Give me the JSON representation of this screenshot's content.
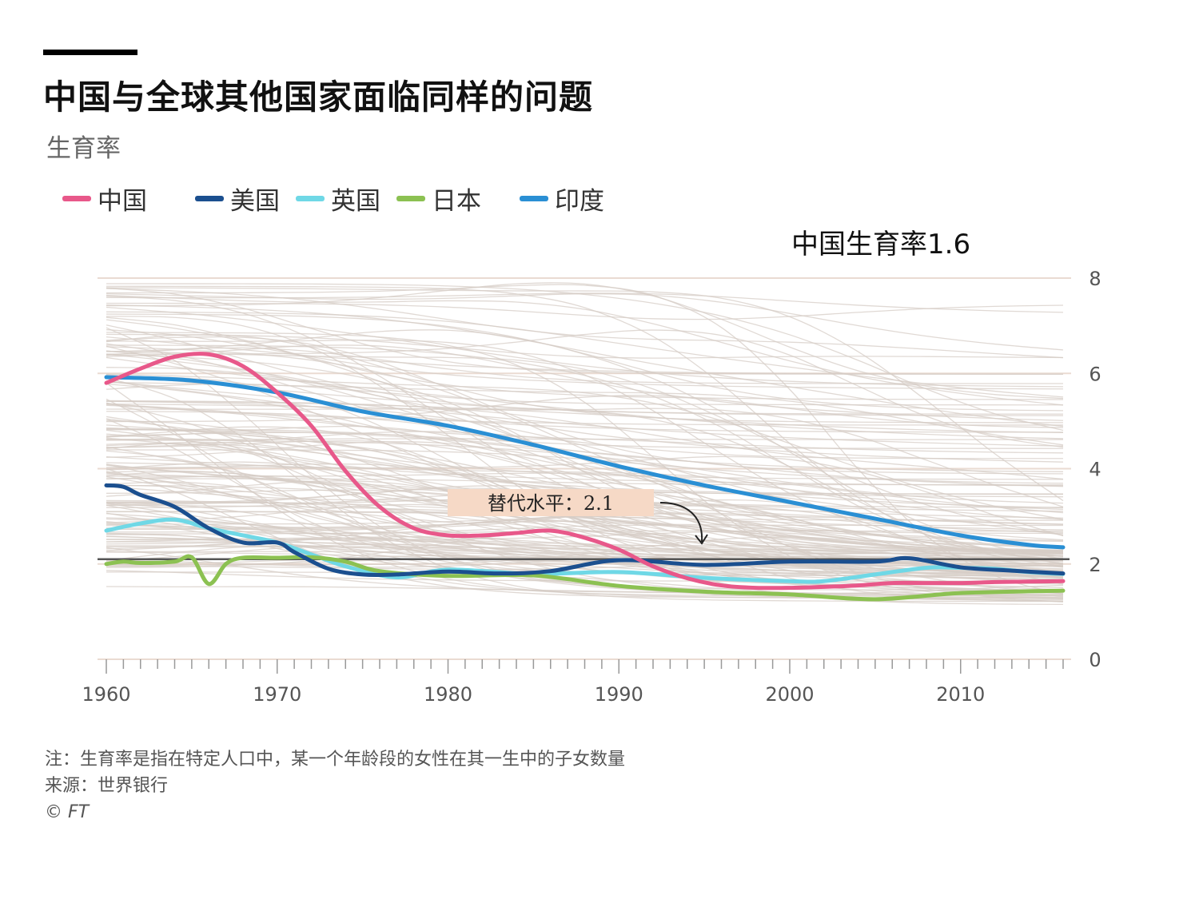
{
  "title": "中国与全球其他国家面临同样的问题",
  "subtitle": "生育率",
  "top_annotation": "中国生育率1.6",
  "legend": [
    {
      "label": "中国",
      "color": "#e8588a"
    },
    {
      "label": "美国",
      "color": "#1b4f8f"
    },
    {
      "label": "英国",
      "color": "#6fd8e6"
    },
    {
      "label": "日本",
      "color": "#8cc152"
    },
    {
      "label": "印度",
      "color": "#2a8fd4"
    }
  ],
  "replacement_label": "替代水平：2.1",
  "notes": {
    "note": "注：生育率是指在特定人口中，某一个年龄段的女性在其一生中的子女数量",
    "source": "来源：世界银行",
    "credit": "© FT"
  },
  "chart_data": {
    "type": "line",
    "ylim": [
      0,
      8
    ],
    "xlim": [
      1960,
      2016
    ],
    "yticks": [
      "0",
      "2",
      "4",
      "6",
      "8"
    ],
    "xticks": [
      "1960",
      "1970",
      "1980",
      "1990",
      "2000",
      "2010"
    ],
    "replacement_level": 2.1,
    "series": [
      {
        "name": "中国",
        "color": "#e8588a",
        "x": [
          1960,
          1962,
          1964,
          1966,
          1968,
          1970,
          1972,
          1974,
          1976,
          1978,
          1980,
          1982,
          1984,
          1986,
          1988,
          1990,
          1992,
          1994,
          1996,
          1998,
          2000,
          2002,
          2004,
          2006,
          2008,
          2010,
          2012,
          2014,
          2016
        ],
        "y": [
          5.8,
          6.1,
          6.35,
          6.4,
          6.15,
          5.6,
          4.9,
          3.95,
          3.2,
          2.75,
          2.6,
          2.6,
          2.65,
          2.7,
          2.55,
          2.3,
          1.95,
          1.7,
          1.55,
          1.5,
          1.5,
          1.52,
          1.55,
          1.6,
          1.6,
          1.6,
          1.62,
          1.63,
          1.64
        ]
      },
      {
        "name": "美国",
        "color": "#1b4f8f",
        "x": [
          1960,
          1961,
          1962,
          1964,
          1966,
          1968,
          1970,
          1971,
          1973,
          1975,
          1977,
          1980,
          1983,
          1986,
          1990,
          1995,
          2000,
          2005,
          2007,
          2010,
          2013,
          2016
        ],
        "y": [
          3.65,
          3.62,
          3.45,
          3.2,
          2.75,
          2.45,
          2.45,
          2.25,
          1.9,
          1.78,
          1.78,
          1.84,
          1.8,
          1.85,
          2.08,
          1.98,
          2.05,
          2.05,
          2.12,
          1.93,
          1.86,
          1.8
        ]
      },
      {
        "name": "英国",
        "color": "#6fd8e6",
        "x": [
          1960,
          1962,
          1964,
          1966,
          1968,
          1970,
          1972,
          1974,
          1977,
          1980,
          1985,
          1990,
          1995,
          2000,
          2002,
          2005,
          2008,
          2010,
          2012,
          2014,
          2016
        ],
        "y": [
          2.7,
          2.85,
          2.93,
          2.75,
          2.6,
          2.45,
          2.2,
          1.95,
          1.72,
          1.88,
          1.79,
          1.83,
          1.71,
          1.64,
          1.64,
          1.78,
          1.92,
          1.92,
          1.9,
          1.83,
          1.79
        ]
      },
      {
        "name": "日本",
        "color": "#8cc152",
        "x": [
          1960,
          1961,
          1962,
          1964,
          1965,
          1966,
          1967,
          1968,
          1970,
          1972,
          1974,
          1976,
          1980,
          1985,
          1990,
          1995,
          2000,
          2005,
          2010,
          2016
        ],
        "y": [
          2.0,
          2.05,
          2.02,
          2.05,
          2.14,
          1.58,
          2.0,
          2.13,
          2.13,
          2.14,
          2.05,
          1.85,
          1.75,
          1.76,
          1.54,
          1.42,
          1.36,
          1.26,
          1.39,
          1.44
        ]
      },
      {
        "name": "印度",
        "color": "#2a8fd4",
        "x": [
          1960,
          1965,
          1970,
          1975,
          1980,
          1985,
          1990,
          1995,
          2000,
          2005,
          2010,
          2014,
          2016
        ],
        "y": [
          5.92,
          5.85,
          5.6,
          5.2,
          4.9,
          4.5,
          4.05,
          3.65,
          3.3,
          2.95,
          2.6,
          2.4,
          2.35
        ]
      }
    ]
  }
}
